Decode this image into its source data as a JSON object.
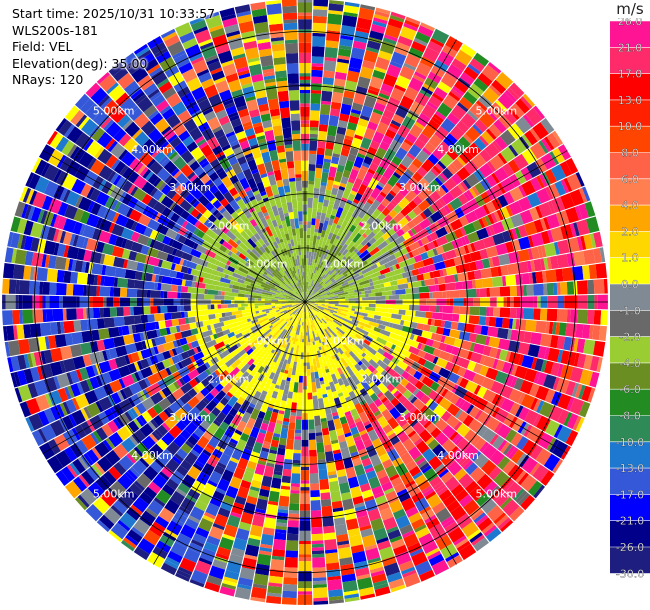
{
  "header": {
    "start_time": "Start time: 2025/10/31 10:33:57",
    "site": "WLS200s-181",
    "field": "Field: VEL",
    "elevation": "Elevation(deg): 35.00",
    "nrays": "NRays: 120"
  },
  "chart_data": {
    "type": "heatmap",
    "projection": "polar-ppi",
    "field": "VEL",
    "units": "m/s",
    "nrays": 120,
    "elevation_deg": 35.0,
    "max_range_km": 5.6,
    "range_rings_km": [
      1.0,
      2.0,
      3.0,
      4.0,
      5.0
    ],
    "range_labels": [
      "1.00km",
      "2.00km",
      "3.00km",
      "4.00km",
      "5.00km"
    ],
    "colorbar": {
      "ticks": [
        "26.0",
        "21.0",
        "17.0",
        "13.0",
        "10.0",
        "8.0",
        "6.0",
        "4.0",
        "2.0",
        "1.0",
        "0.0",
        "-1.0",
        "-2.0",
        "-4.0",
        "-6.0",
        "-8.0",
        "-10.0",
        "-13.0",
        "-17.0",
        "-21.0",
        "-26.0",
        "-30.0"
      ],
      "bin_colors": [
        "#ff1493",
        "#ff2a6a",
        "#ff0000",
        "#ff2000",
        "#ff4500",
        "#ff6347",
        "#ff7f50",
        "#ffa500",
        "#ffd700",
        "#ffff00",
        "#808a95",
        "#696969",
        "#9acd32",
        "#6b8e23",
        "#228b22",
        "#2e8b57",
        "#1e78d0",
        "#3558d8",
        "#0000ff",
        "#00008b",
        "#1e1e80"
      ]
    }
  }
}
